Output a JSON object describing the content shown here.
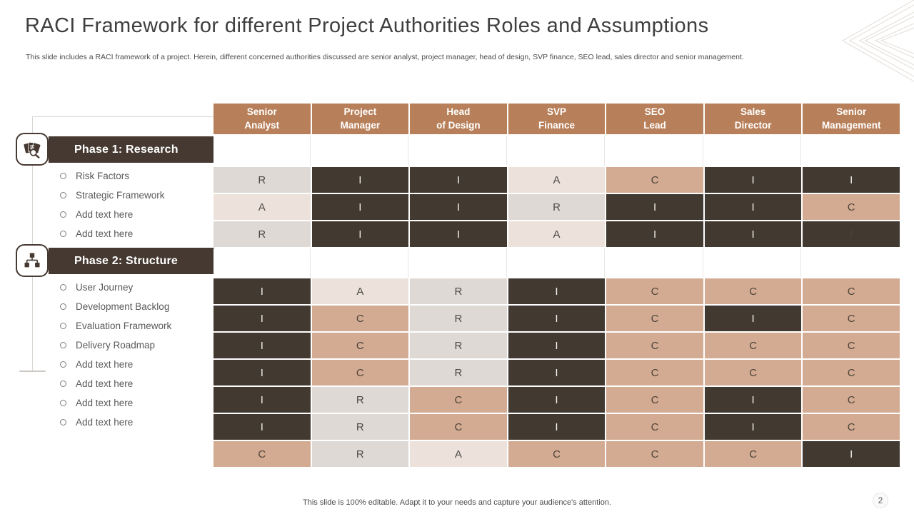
{
  "slide": {
    "title": "RACI Framework for different Project Authorities Roles and Assumptions",
    "subtitle": "This slide includes a RACI  framework of a project. Herein, different concerned authorities discussed are senior analyst, project manager, head of design, SVP finance, SEO  lead,  sales director and senior management.",
    "footer": "This slide is 100% editable. Adapt it to your needs and capture your audience's attention.",
    "page_number": "2"
  },
  "phases": [
    {
      "label": "Phase 1: Research",
      "icon": "documents-magnifier-icon",
      "items": [
        "Risk Factors",
        "Strategic Framework",
        "Add text here",
        "Add text here"
      ]
    },
    {
      "label": "Phase 2: Structure",
      "icon": "org-chart-icon",
      "items": [
        "User Journey",
        "Development Backlog",
        "Evaluation Framework",
        "Delivery Roadmap",
        "Add text here",
        "Add text here",
        "Add text here",
        "Add text here"
      ]
    }
  ],
  "table": {
    "columns": [
      {
        "line1": "Senior",
        "line2": "Analyst"
      },
      {
        "line1": "Project",
        "line2": "Manager"
      },
      {
        "line1": "Head",
        "line2": "of Design"
      },
      {
        "line1": "SVP",
        "line2": "Finance"
      },
      {
        "line1": "SEO",
        "line2": "Lead"
      },
      {
        "line1": "Sales",
        "line2": "Director"
      },
      {
        "line1": "Senior",
        "line2": "Management"
      }
    ],
    "phase1_rows": [
      [
        {
          "v": "R",
          "s": "gray"
        },
        {
          "v": "I",
          "s": "dark"
        },
        {
          "v": "I",
          "s": "dark"
        },
        {
          "v": "A",
          "s": "cream"
        },
        {
          "v": "C",
          "s": "tan"
        },
        {
          "v": "I",
          "s": "dark"
        },
        {
          "v": "I",
          "s": "dark"
        }
      ],
      [
        {
          "v": "A",
          "s": "cream"
        },
        {
          "v": "I",
          "s": "dark"
        },
        {
          "v": "I",
          "s": "dark"
        },
        {
          "v": "R",
          "s": "gray"
        },
        {
          "v": "I",
          "s": "dark"
        },
        {
          "v": "I",
          "s": "dark"
        },
        {
          "v": "C",
          "s": "tan"
        }
      ],
      [
        {
          "v": "R",
          "s": "gray"
        },
        {
          "v": "I",
          "s": "dark"
        },
        {
          "v": "I",
          "s": "dark"
        },
        {
          "v": "A",
          "s": "cream"
        },
        {
          "v": "I",
          "s": "dark"
        },
        {
          "v": "I",
          "s": "dark"
        },
        {
          "v": "I",
          "s": "darkfaint"
        }
      ]
    ],
    "phase2_rows": [
      [
        {
          "v": "I",
          "s": "dark"
        },
        {
          "v": "A",
          "s": "cream"
        },
        {
          "v": "R",
          "s": "gray"
        },
        {
          "v": "I",
          "s": "dark"
        },
        {
          "v": "C",
          "s": "tan"
        },
        {
          "v": "C",
          "s": "tan"
        },
        {
          "v": "C",
          "s": "tan"
        }
      ],
      [
        {
          "v": "I",
          "s": "dark"
        },
        {
          "v": "C",
          "s": "tan"
        },
        {
          "v": "R",
          "s": "gray"
        },
        {
          "v": "I",
          "s": "dark"
        },
        {
          "v": "C",
          "s": "tan"
        },
        {
          "v": "I",
          "s": "dark"
        },
        {
          "v": "C",
          "s": "tan"
        }
      ],
      [
        {
          "v": "I",
          "s": "dark"
        },
        {
          "v": "C",
          "s": "tan"
        },
        {
          "v": "R",
          "s": "gray"
        },
        {
          "v": "I",
          "s": "dark"
        },
        {
          "v": "C",
          "s": "tan"
        },
        {
          "v": "C",
          "s": "tan"
        },
        {
          "v": "C",
          "s": "tan"
        }
      ],
      [
        {
          "v": "I",
          "s": "dark"
        },
        {
          "v": "C",
          "s": "tan"
        },
        {
          "v": "R",
          "s": "gray"
        },
        {
          "v": "I",
          "s": "dark"
        },
        {
          "v": "C",
          "s": "tan"
        },
        {
          "v": "C",
          "s": "tan"
        },
        {
          "v": "C",
          "s": "tan"
        }
      ],
      [
        {
          "v": "I",
          "s": "dark"
        },
        {
          "v": "R",
          "s": "gray"
        },
        {
          "v": "C",
          "s": "tan"
        },
        {
          "v": "I",
          "s": "dark"
        },
        {
          "v": "C",
          "s": "tan"
        },
        {
          "v": "I",
          "s": "dark"
        },
        {
          "v": "C",
          "s": "tan"
        }
      ],
      [
        {
          "v": "I",
          "s": "dark"
        },
        {
          "v": "R",
          "s": "gray"
        },
        {
          "v": "C",
          "s": "tan"
        },
        {
          "v": "I",
          "s": "dark"
        },
        {
          "v": "C",
          "s": "tan"
        },
        {
          "v": "I",
          "s": "dark"
        },
        {
          "v": "C",
          "s": "tan"
        }
      ],
      [
        {
          "v": "C",
          "s": "tan"
        },
        {
          "v": "R",
          "s": "gray"
        },
        {
          "v": "A",
          "s": "cream"
        },
        {
          "v": "C",
          "s": "tan"
        },
        {
          "v": "C",
          "s": "tan"
        },
        {
          "v": "C",
          "s": "tan"
        },
        {
          "v": "I",
          "s": "dark"
        }
      ]
    ]
  },
  "colors": {
    "header_brown": "#b8805a",
    "dark_cell": "#423931",
    "tan_cell": "#d3ab92",
    "gray_cell": "#ded9d5",
    "cream_cell": "#ece2db",
    "banner_dark": "#453931",
    "accent_line": "#d9d5d1"
  }
}
